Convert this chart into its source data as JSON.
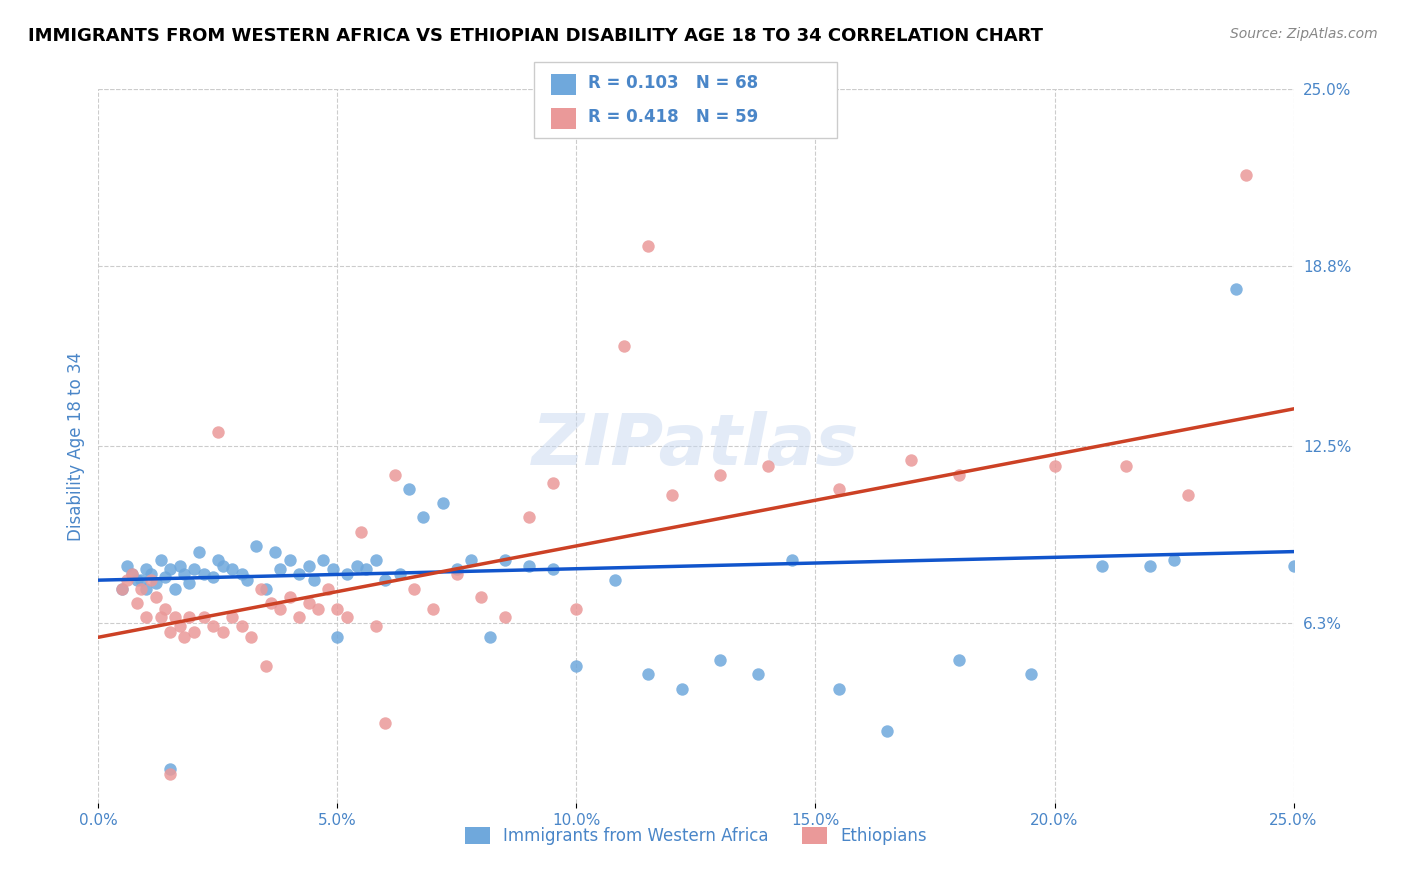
{
  "title": "IMMIGRANTS FROM WESTERN AFRICA VS ETHIOPIAN DISABILITY AGE 18 TO 34 CORRELATION CHART",
  "source": "Source: ZipAtlas.com",
  "xlabel": "",
  "ylabel": "Disability Age 18 to 34",
  "xlim": [
    0.0,
    0.25
  ],
  "ylim": [
    0.0,
    0.25
  ],
  "xticks": [
    0.0,
    0.05,
    0.1,
    0.15,
    0.2,
    0.25
  ],
  "yticks": [
    0.063,
    0.125,
    0.188,
    0.25
  ],
  "ytick_labels": [
    "6.3%",
    "12.5%",
    "18.8%",
    "25.0%"
  ],
  "xtick_labels": [
    "0.0%",
    "5.0%",
    "10.0%",
    "15.0%",
    "20.0%",
    "25.0%"
  ],
  "right_yticks": [
    0.063,
    0.125,
    0.188,
    0.25
  ],
  "right_ytick_labels": [
    "6.3%",
    "12.5%",
    "18.8%",
    "25.0%"
  ],
  "series1_color": "#6fa8dc",
  "series2_color": "#ea9999",
  "line1_color": "#1155cc",
  "line2_color": "#cc4125",
  "legend_r1": "0.103",
  "legend_n1": "68",
  "legend_r2": "0.418",
  "legend_n2": "59",
  "watermark": "ZIPatlas",
  "background_color": "#ffffff",
  "grid_color": "#cccccc",
  "series1_x": [
    0.006,
    0.008,
    0.01,
    0.01,
    0.011,
    0.012,
    0.013,
    0.014,
    0.015,
    0.016,
    0.017,
    0.018,
    0.019,
    0.02,
    0.021,
    0.022,
    0.024,
    0.025,
    0.026,
    0.028,
    0.03,
    0.031,
    0.033,
    0.035,
    0.037,
    0.038,
    0.04,
    0.042,
    0.044,
    0.045,
    0.047,
    0.049,
    0.05,
    0.052,
    0.054,
    0.056,
    0.058,
    0.06,
    0.063,
    0.065,
    0.068,
    0.072,
    0.075,
    0.078,
    0.082,
    0.085,
    0.09,
    0.095,
    0.1,
    0.108,
    0.115,
    0.122,
    0.13,
    0.138,
    0.145,
    0.155,
    0.165,
    0.18,
    0.195,
    0.21,
    0.225,
    0.238,
    0.25,
    0.22,
    0.005,
    0.007,
    0.009,
    0.015
  ],
  "series1_y": [
    0.083,
    0.078,
    0.075,
    0.082,
    0.08,
    0.077,
    0.085,
    0.079,
    0.082,
    0.075,
    0.083,
    0.08,
    0.077,
    0.082,
    0.088,
    0.08,
    0.079,
    0.085,
    0.083,
    0.082,
    0.08,
    0.078,
    0.09,
    0.075,
    0.088,
    0.082,
    0.085,
    0.08,
    0.083,
    0.078,
    0.085,
    0.082,
    0.058,
    0.08,
    0.083,
    0.082,
    0.085,
    0.078,
    0.08,
    0.11,
    0.1,
    0.105,
    0.082,
    0.085,
    0.058,
    0.085,
    0.083,
    0.082,
    0.048,
    0.078,
    0.045,
    0.04,
    0.05,
    0.045,
    0.085,
    0.04,
    0.025,
    0.05,
    0.045,
    0.083,
    0.085,
    0.18,
    0.083,
    0.083,
    0.075,
    0.08,
    0.078,
    0.012
  ],
  "series2_x": [
    0.005,
    0.006,
    0.007,
    0.008,
    0.009,
    0.01,
    0.011,
    0.012,
    0.013,
    0.014,
    0.015,
    0.016,
    0.017,
    0.018,
    0.019,
    0.02,
    0.022,
    0.024,
    0.026,
    0.028,
    0.03,
    0.032,
    0.034,
    0.036,
    0.038,
    0.04,
    0.042,
    0.044,
    0.046,
    0.048,
    0.05,
    0.052,
    0.055,
    0.058,
    0.062,
    0.066,
    0.07,
    0.075,
    0.08,
    0.085,
    0.09,
    0.095,
    0.1,
    0.11,
    0.115,
    0.12,
    0.13,
    0.14,
    0.155,
    0.17,
    0.18,
    0.2,
    0.215,
    0.228,
    0.24,
    0.025,
    0.035,
    0.06,
    0.015
  ],
  "series2_y": [
    0.075,
    0.078,
    0.08,
    0.07,
    0.075,
    0.065,
    0.078,
    0.072,
    0.065,
    0.068,
    0.06,
    0.065,
    0.062,
    0.058,
    0.065,
    0.06,
    0.065,
    0.062,
    0.06,
    0.065,
    0.062,
    0.058,
    0.075,
    0.07,
    0.068,
    0.072,
    0.065,
    0.07,
    0.068,
    0.075,
    0.068,
    0.065,
    0.095,
    0.062,
    0.115,
    0.075,
    0.068,
    0.08,
    0.072,
    0.065,
    0.1,
    0.112,
    0.068,
    0.16,
    0.195,
    0.108,
    0.115,
    0.118,
    0.11,
    0.12,
    0.115,
    0.118,
    0.118,
    0.108,
    0.22,
    0.13,
    0.048,
    0.028,
    0.01
  ],
  "line1_x": [
    0.0,
    0.25
  ],
  "line1_y_start": 0.078,
  "line1_y_end": 0.088,
  "line2_x": [
    0.0,
    0.25
  ],
  "line2_y_start": 0.058,
  "line2_y_end": 0.138,
  "title_color": "#000000",
  "axis_label_color": "#4a86c8",
  "tick_label_color": "#4a86c8",
  "legend_box_color1": "#6fa8dc",
  "legend_box_color2": "#ea9999",
  "legend_text_color": "#4a86c8",
  "bottom_legend_label1": "Immigrants from Western Africa",
  "bottom_legend_label2": "Ethiopians"
}
